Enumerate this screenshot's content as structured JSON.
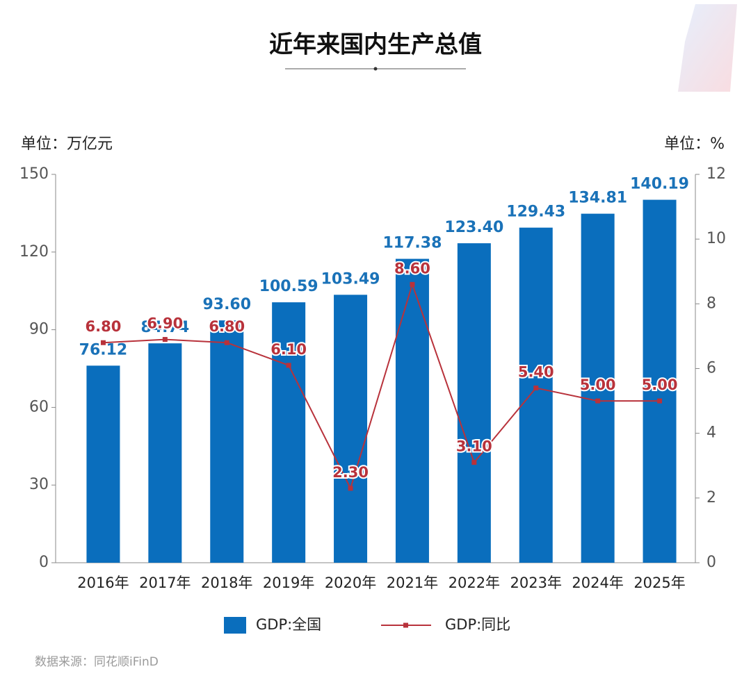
{
  "chart_data": {
    "type": "bar",
    "title": "近年来国内生产总值",
    "y_unit_label": "单位：万亿元",
    "y2_unit_label": "单位：%",
    "categories": [
      "2016年",
      "2017年",
      "2018年",
      "2019年",
      "2020年",
      "2021年",
      "2022年",
      "2023年",
      "2024年",
      "2025年"
    ],
    "series": [
      {
        "name": "GDP:全国",
        "type": "bar",
        "color": "#0a6ebd",
        "values": [
          76.12,
          84.74,
          93.6,
          100.59,
          103.49,
          117.38,
          123.4,
          129.43,
          134.81,
          140.19
        ],
        "value_labels": [
          "76.12",
          "84.74",
          "93.60",
          "100.59",
          "103.49",
          "117.38",
          "123.40",
          "129.43",
          "134.81",
          "140.19"
        ]
      },
      {
        "name": "GDP:同比",
        "type": "line",
        "axis": "y2",
        "color": "#b8323b",
        "values": [
          6.8,
          6.9,
          6.8,
          6.1,
          2.3,
          8.6,
          3.1,
          5.4,
          5.0,
          5.0
        ],
        "value_labels": [
          "6.80",
          "6.90",
          "6.80",
          "6.10",
          "2.30",
          "8.60",
          "3.10",
          "5.40",
          "5.00",
          "5.00"
        ]
      }
    ],
    "ylim": [
      0,
      150
    ],
    "yticks": [
      0,
      30,
      60,
      90,
      120,
      150
    ],
    "y2lim": [
      0,
      12
    ],
    "y2ticks": [
      0,
      2,
      4,
      6,
      8,
      10,
      12
    ],
    "legend": "bottom",
    "source": "数据来源：同花顺iFinD"
  }
}
